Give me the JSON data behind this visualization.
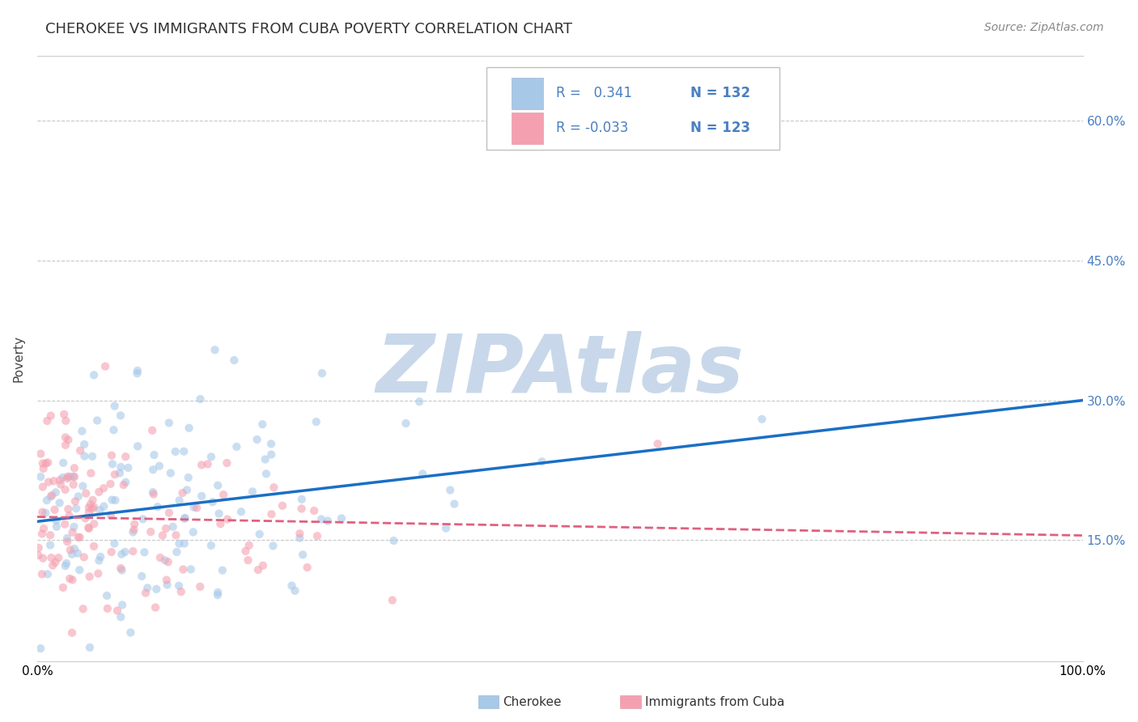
{
  "title": "CHEROKEE VS IMMIGRANTS FROM CUBA POVERTY CORRELATION CHART",
  "source": "Source: ZipAtlas.com",
  "ylabel": "Poverty",
  "ytick_labels": [
    "15.0%",
    "30.0%",
    "45.0%",
    "60.0%"
  ],
  "ytick_values": [
    0.15,
    0.3,
    0.45,
    0.6
  ],
  "xlim": [
    0.0,
    1.0
  ],
  "ylim": [
    0.02,
    0.67
  ],
  "series1_label": "Cherokee",
  "series2_label": "Immigrants from Cuba",
  "series1_color": "#a8c8e8",
  "series2_color": "#f4a0b0",
  "series1_line_color": "#1a6fc4",
  "series2_line_color": "#e06080",
  "legend_text_color": "#4a7fc0",
  "legend_R1": "R =   0.341",
  "legend_N1": "N = 132",
  "legend_R2": "R = -0.033",
  "legend_N2": "N = 123",
  "grid_color": "#c8c8c8",
  "watermark": "ZIPAtlas",
  "watermark_color": "#c8d8ea",
  "background_color": "#ffffff",
  "title_fontsize": 13,
  "source_fontsize": 10,
  "axis_label_fontsize": 11,
  "tick_fontsize": 11,
  "legend_fontsize": 12,
  "marker_size": 55,
  "marker_alpha": 0.6,
  "seed1": 42,
  "seed2": 77,
  "N1": 132,
  "N2": 123,
  "line1_x0": 0.0,
  "line1_y0": 0.17,
  "line1_x1": 1.0,
  "line1_y1": 0.3,
  "line2_x0": 0.0,
  "line2_y0": 0.175,
  "line2_x1": 1.0,
  "line2_y1": 0.155
}
